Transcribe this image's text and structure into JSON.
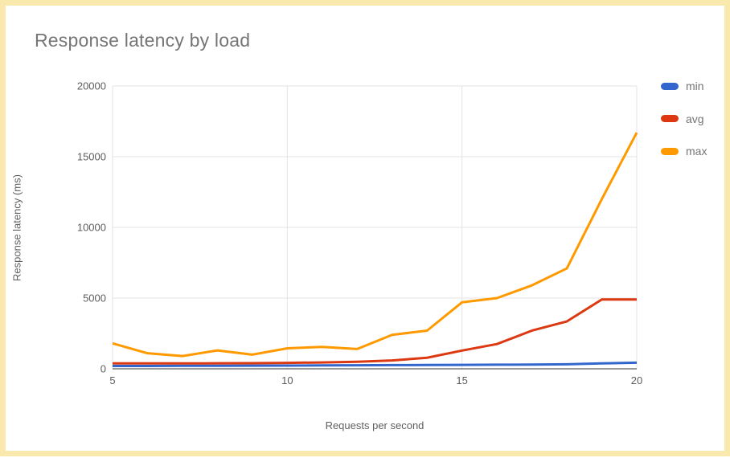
{
  "frame": {
    "border_color": "#f9e9ac",
    "background": "#ffffff"
  },
  "chart_data": {
    "type": "line",
    "title": "Response latency by load",
    "xlabel": "Requests per second",
    "ylabel": "Response latency (ms)",
    "x": [
      5,
      6,
      7,
      8,
      9,
      10,
      11,
      12,
      13,
      14,
      15,
      16,
      17,
      18,
      19,
      20
    ],
    "series": [
      {
        "name": "min",
        "color": "#3366CC",
        "values": [
          200,
          200,
          210,
          210,
          220,
          230,
          240,
          250,
          260,
          270,
          280,
          290,
          300,
          320,
          380,
          430
        ]
      },
      {
        "name": "avg",
        "color": "#DC3912",
        "values": [
          380,
          380,
          380,
          390,
          400,
          420,
          450,
          500,
          590,
          780,
          1290,
          1750,
          2700,
          3350,
          4900,
          4900
        ]
      },
      {
        "name": "max",
        "color": "#FF9900",
        "values": [
          1800,
          1100,
          900,
          1300,
          1000,
          1450,
          1550,
          1400,
          2400,
          2700,
          4700,
          5000,
          5900,
          7100,
          12000,
          16700
        ]
      }
    ],
    "xlim": [
      5,
      20
    ],
    "ylim": [
      0,
      20000
    ],
    "xticks": [
      5,
      10,
      15,
      20
    ],
    "yticks": [
      0,
      5000,
      10000,
      15000,
      20000
    ],
    "grid": true,
    "legend_position": "right",
    "gridline_color": "#e3e3e3",
    "baseline_color": "#333333",
    "tick_label_color": "#5c5c5c"
  }
}
